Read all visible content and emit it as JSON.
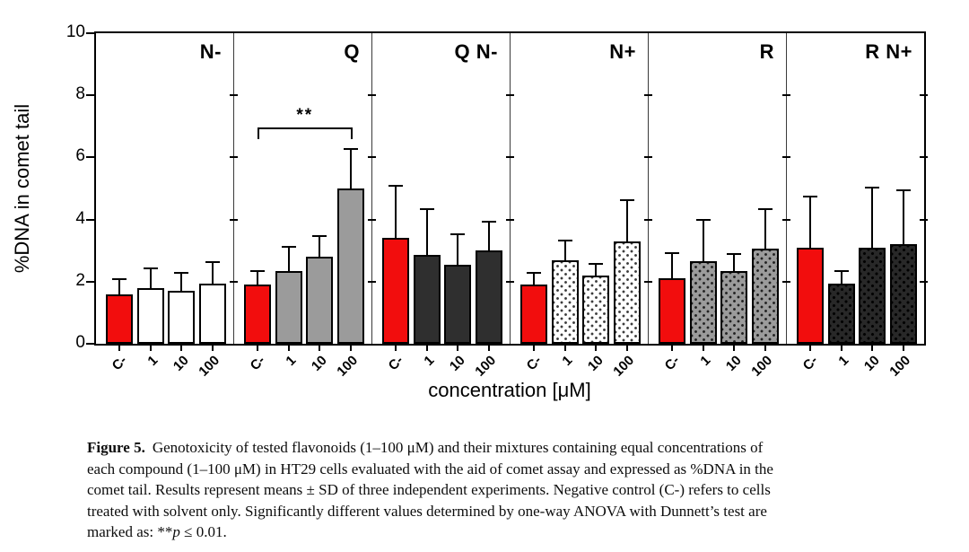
{
  "chart_data": {
    "type": "bar",
    "title": "",
    "ylabel": "%DNA in comet tail",
    "xlabel": "concentration [μM]",
    "ylim": [
      0,
      10
    ],
    "yticks": [
      0,
      2,
      4,
      6,
      8,
      10
    ],
    "categories": [
      "C-",
      "1",
      "10",
      "100"
    ],
    "grid": false,
    "legend": "none",
    "error_bars": "upper SD",
    "colors": {
      "control_red": "#f20d0d",
      "white_bar": "#ffffff",
      "gray_bar": "#9b9b9b",
      "dark_bar": "#2f2f2f",
      "dot_dark_bar": "#282828",
      "outline": "#000000"
    },
    "panels": [
      {
        "label": "N-",
        "bar_style": "white",
        "means": [
          1.6,
          1.8,
          1.7,
          1.95
        ],
        "err_tops": [
          2.05,
          2.4,
          2.25,
          2.6
        ]
      },
      {
        "label": "Q",
        "bar_style": "gray",
        "means": [
          1.9,
          2.35,
          2.8,
          5.0
        ],
        "err_tops": [
          2.3,
          3.1,
          3.45,
          6.25
        ],
        "significance": {
          "from": 0,
          "to": 3,
          "label": "**",
          "y": 6.9
        }
      },
      {
        "label": "Q N-",
        "bar_style": "dark",
        "means": [
          3.4,
          2.85,
          2.55,
          3.0
        ],
        "err_tops": [
          5.05,
          4.3,
          3.5,
          3.9
        ]
      },
      {
        "label": "N+",
        "bar_style": "dot-white",
        "means": [
          1.9,
          2.7,
          2.2,
          3.3
        ],
        "err_tops": [
          2.25,
          3.3,
          2.55,
          4.6
        ]
      },
      {
        "label": "R",
        "bar_style": "dot-gray",
        "means": [
          2.1,
          2.65,
          2.35,
          3.05
        ],
        "err_tops": [
          2.9,
          3.95,
          2.85,
          4.3
        ]
      },
      {
        "label": "R N+",
        "bar_style": "dot-dark",
        "means": [
          3.1,
          1.95,
          3.1,
          3.2
        ],
        "err_tops": [
          4.7,
          2.3,
          5.0,
          4.9
        ]
      }
    ]
  },
  "caption": {
    "label": "Figure 5.",
    "lines": [
      "Genotoxicity of tested flavonoids (1–100 μM) and their mixtures containing equal concentrations of",
      "each compound (1–100 μM) in HT29 cells evaluated with the aid of comet assay and expressed as %DNA in the",
      "comet tail. Results represent means ± SD of three independent experiments. Negative control (C-) refers to cells",
      "treated with solvent only. Significantly different values determined by one-way ANOVA with Dunnett’s test are"
    ],
    "last": {
      "prefix": "marked as: **",
      "p": "p",
      "suffix": " ≤ 0.01."
    }
  }
}
